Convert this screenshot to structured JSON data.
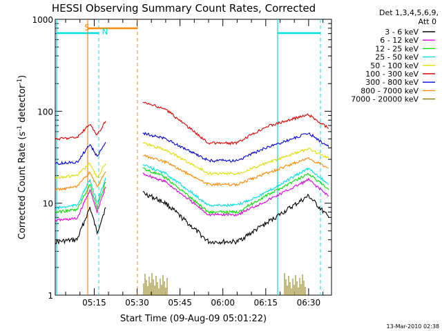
{
  "chart_data": {
    "type": "line",
    "title": "HESSI Observing Summary Count Rates, Corrected",
    "xlabel": "Start Time (09-Aug-09 05:01:22)",
    "ylabel_main": "Corrected Count Rate (s",
    "ylabel_sup1": "-1",
    "ylabel_mid": " detector",
    "ylabel_sup2": "-1",
    "ylabel_end": ")",
    "y_scale": "log",
    "ylim": [
      1,
      1000
    ],
    "xlim": [
      "05:01:22",
      "06:38:00"
    ],
    "y_ticks": [
      {
        "v": 1,
        "label": "1"
      },
      {
        "v": 10,
        "label": "10"
      },
      {
        "v": 100,
        "label": "100"
      },
      {
        "v": 1000,
        "label": "1000"
      }
    ],
    "x_ticks": [
      {
        "v": "05:15",
        "label": "05:15"
      },
      {
        "v": "05:30",
        "label": "05:30"
      },
      {
        "v": "05:45",
        "label": "05:45"
      },
      {
        "v": "06:00",
        "label": "06:00"
      },
      {
        "v": "06:15",
        "label": "06:15"
      },
      {
        "v": "06:30",
        "label": "06:30"
      }
    ],
    "legend": {
      "header1": "Det 1,3,4,5,6,9,",
      "header2": "Att 0",
      "placement": "right"
    },
    "series": [
      {
        "name": "3 - 6 keV",
        "color": "#000000",
        "points": [
          [
            "05:01:22",
            3.8
          ],
          [
            "05:09",
            4.0
          ],
          [
            "05:13:30",
            9.0
          ],
          [
            "05:16",
            4.8
          ],
          [
            "05:19",
            9.0
          ],
          [
            "05:32",
            13
          ],
          [
            "05:40",
            10
          ],
          [
            "05:55",
            3.8
          ],
          [
            "06:05",
            3.8
          ],
          [
            "06:15",
            6.0
          ],
          [
            "06:30",
            12
          ],
          [
            "06:37",
            7.0
          ]
        ]
      },
      {
        "name": "6 - 12 keV",
        "color": "#dd00dd",
        "points": [
          [
            "05:01:22",
            6.5
          ],
          [
            "05:09",
            6.8
          ],
          [
            "05:13:30",
            14
          ],
          [
            "05:16",
            8.0
          ],
          [
            "05:19",
            15
          ],
          [
            "05:32",
            21
          ],
          [
            "05:40",
            17
          ],
          [
            "05:55",
            7.5
          ],
          [
            "06:05",
            7.5
          ],
          [
            "06:15",
            10.5
          ],
          [
            "06:30",
            18
          ],
          [
            "06:37",
            12
          ]
        ]
      },
      {
        "name": "12 - 25 keV",
        "color": "#00dd00",
        "points": [
          [
            "05:01:22",
            8.0
          ],
          [
            "05:09",
            8.5
          ],
          [
            "05:13:30",
            16
          ],
          [
            "05:16",
            9.0
          ],
          [
            "05:19",
            17
          ],
          [
            "05:32",
            24
          ],
          [
            "05:40",
            19
          ],
          [
            "05:55",
            8.0
          ],
          [
            "06:05",
            8.0
          ],
          [
            "06:15",
            12
          ],
          [
            "06:30",
            21
          ],
          [
            "06:37",
            14
          ]
        ]
      },
      {
        "name": "25 - 50 keV",
        "color": "#00dddd",
        "points": [
          [
            "05:01:22",
            8.8
          ],
          [
            "05:09",
            9.5
          ],
          [
            "05:13:30",
            18
          ],
          [
            "05:16",
            10
          ],
          [
            "05:19",
            19
          ],
          [
            "05:32",
            26
          ],
          [
            "05:40",
            21
          ],
          [
            "05:55",
            9.5
          ],
          [
            "06:05",
            9.5
          ],
          [
            "06:15",
            13
          ],
          [
            "06:30",
            24
          ],
          [
            "06:37",
            16
          ]
        ]
      },
      {
        "name": "50 - 100 keV",
        "color": "#dddd00",
        "points": [
          [
            "05:01:22",
            19
          ],
          [
            "05:09",
            20
          ],
          [
            "05:13:30",
            27
          ],
          [
            "05:16",
            19
          ],
          [
            "05:19",
            27
          ],
          [
            "05:32",
            45
          ],
          [
            "05:40",
            38
          ],
          [
            "05:55",
            21
          ],
          [
            "06:05",
            21
          ],
          [
            "06:15",
            27
          ],
          [
            "06:30",
            39
          ],
          [
            "06:37",
            31
          ]
        ]
      },
      {
        "name": "100 - 300 keV",
        "color": "#dd0000",
        "points": [
          [
            "05:01:22",
            50
          ],
          [
            "05:09",
            52
          ],
          [
            "05:13:30",
            72
          ],
          [
            "05:16",
            55
          ],
          [
            "05:19",
            78
          ],
          [
            "05:32",
            125
          ],
          [
            "05:40",
            105
          ],
          [
            "05:55",
            45
          ],
          [
            "06:05",
            45
          ],
          [
            "06:15",
            68
          ],
          [
            "06:30",
            92
          ],
          [
            "06:37",
            65
          ]
        ]
      },
      {
        "name": "300 - 800 keV",
        "color": "#0000dd",
        "points": [
          [
            "05:01:22",
            27
          ],
          [
            "05:09",
            28
          ],
          [
            "05:13:30",
            44
          ],
          [
            "05:16",
            32
          ],
          [
            "05:19",
            46
          ],
          [
            "05:32",
            58
          ],
          [
            "05:40",
            50
          ],
          [
            "05:55",
            29
          ],
          [
            "06:05",
            29
          ],
          [
            "06:15",
            40
          ],
          [
            "06:30",
            58
          ],
          [
            "06:37",
            41
          ]
        ]
      },
      {
        "name": "800 - 7000 keV",
        "color": "#ff8800",
        "points": [
          [
            "05:01:22",
            14
          ],
          [
            "05:09",
            15
          ],
          [
            "05:13:30",
            22
          ],
          [
            "05:16",
            15
          ],
          [
            "05:19",
            22
          ],
          [
            "05:32",
            33
          ],
          [
            "05:40",
            28
          ],
          [
            "05:55",
            16
          ],
          [
            "06:05",
            16
          ],
          [
            "06:15",
            21
          ],
          [
            "06:30",
            31
          ],
          [
            "06:37",
            24
          ]
        ]
      },
      {
        "name": "7000 - 20000 keV",
        "color": "#887700",
        "points": []
      }
    ],
    "annotations": {
      "s_label": "S",
      "n_label": "N",
      "date_stamp": "13-Mar-2010 02:38"
    }
  }
}
